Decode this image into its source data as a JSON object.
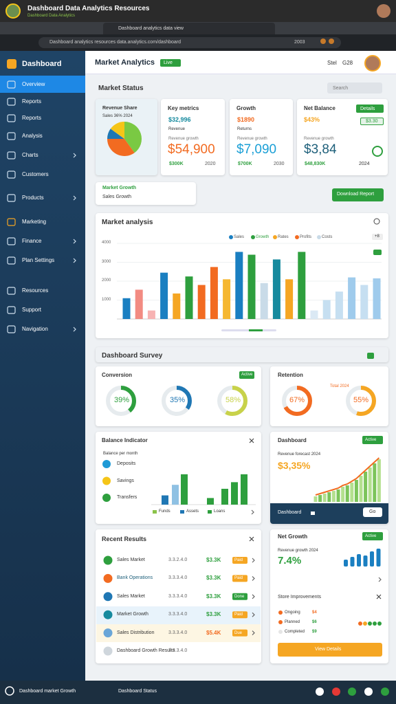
{
  "browser": {
    "title": "Dashboard Data Analytics Resources",
    "subtitle": "Dashboard Data Analytics",
    "tab": "Dashboard analytics data view",
    "url": "Dashboard analytics resources data.analytics.com/dashboard",
    "zoom": "2003"
  },
  "sidebar": {
    "brand": "Dashboard",
    "items": [
      "Overview",
      "Reports",
      "Reports",
      "Analysis",
      "Charts",
      "Customers",
      "Products",
      "Marketing",
      "Finance",
      "Plan Settings",
      "Resources",
      "Support",
      "Navigation"
    ]
  },
  "header": {
    "title": "Market Analytics",
    "badge": "Live",
    "user": "Stel",
    "code": "G28"
  },
  "overview": {
    "title": "Market Status",
    "search": "Search"
  },
  "kpis": [
    {
      "title": "Revenue Share",
      "subtitle": "Sales 36% 2024",
      "pie": {
        "values": [
          40,
          35,
          10,
          15
        ],
        "colors": [
          "#7ac943",
          "#f26b21",
          "#1f77b4",
          "#f5c518"
        ]
      }
    },
    {
      "title": "Key metrics",
      "label": "$32,996",
      "note": "Revenue",
      "caption": "Revenue growth",
      "value": "$54,900",
      "foot": [
        "$300K",
        "2020"
      ]
    },
    {
      "title": "Growth",
      "label": "$1890",
      "note": "Returns",
      "caption": "Revenue growth",
      "value": "$7,090",
      "foot": [
        "$700K",
        "2030"
      ]
    },
    {
      "title": "Net Balance",
      "badge": "Details",
      "label": "$43%",
      "chip": "$3.30",
      "caption": "Revenue growth",
      "value": "$3,84",
      "foot": [
        "$48,830K",
        "2024"
      ]
    }
  ],
  "filters": {
    "title": "Market Growth",
    "label": "Sales Growth"
  },
  "download": "Download Report",
  "market": {
    "title": "Market analysis",
    "legend": [
      "Sales",
      "Growth",
      "Rates",
      "Profits",
      "Costs"
    ],
    "badge": "+8",
    "ylim": [
      0,
      4000
    ],
    "yticks": [
      1000,
      2000,
      3000,
      4000
    ],
    "bars": {
      "values": [
        1100,
        1550,
        450,
        2450,
        1350,
        2250,
        1800,
        2750,
        2100,
        3550,
        3400,
        1900,
        3150,
        2100,
        3550,
        450,
        1000,
        1450,
        2200,
        1800,
        2150
      ],
      "colors": [
        "#1a7fc1",
        "#f28b82",
        "#f7b3b3",
        "#1a7fc1",
        "#f5a623",
        "#2e9f3e",
        "#f26b21",
        "#f26b21",
        "#f5b731",
        "#1a7fc1",
        "#2e9f3e",
        "#c9dbe8",
        "#168a9e",
        "#f5a623",
        "#2e9f3e",
        "#dbe9f4",
        "#c6dff1",
        "#c6dff1",
        "#9fcbec",
        "#c6dff1",
        "#9fcbec"
      ]
    }
  },
  "survey": {
    "title": "Dashboard Survey"
  },
  "conversion": {
    "title": "Conversion",
    "badge": "Active",
    "rings": [
      {
        "value": 39,
        "label": "39%",
        "color": "#2e9f3e"
      },
      {
        "value": 35,
        "label": "35%",
        "color": "#1f77b4"
      },
      {
        "value": 58,
        "label": "58%",
        "color": "#c8d24a"
      }
    ]
  },
  "retention": {
    "title": "Retention",
    "note": "Total 2024",
    "rings": [
      {
        "value": 67,
        "label": "67%",
        "color": "#f26b21"
      },
      {
        "value": 55,
        "label": "55%",
        "color": "#f5a623"
      }
    ]
  },
  "balance": {
    "title": "Balance Indicator",
    "note": "Balance per month",
    "items": [
      "Deposits",
      "Savings",
      "Transfers"
    ],
    "ylim": [
      0,
      50
    ],
    "bars": {
      "values": [
        14,
        30,
        46,
        10,
        24,
        34,
        46
      ],
      "colors": [
        "#1f77b4",
        "#8fc1e3",
        "#2e9f3e",
        "#2e9f3e",
        "#2e9f3e",
        "#2e9f3e",
        "#2e9f3e"
      ]
    },
    "legend": [
      "Funds",
      "Assets",
      "Loans"
    ]
  },
  "growth": {
    "title": "Dashboard",
    "badge": "Active",
    "note": "Revenue forecast 2024",
    "value": "$3,35%",
    "ylim": [
      0,
      70
    ],
    "bars": [
      8,
      10,
      12,
      14,
      16,
      18,
      22,
      24,
      28,
      32,
      38,
      44,
      50,
      56,
      62
    ],
    "footer": "Dashboard",
    "button": "Go"
  },
  "transactions": {
    "title": "Recent Results",
    "rows": [
      {
        "name": "Sales Market",
        "id": "3.3.2.4.0",
        "amount": "$3.3K",
        "badge": "Paid"
      },
      {
        "name": "Bank Operations",
        "id": "3.3.3.4.0",
        "amount": "$3.3K",
        "badge": "Paid"
      },
      {
        "name": "Sales Market",
        "id": "3.3.3.4.0",
        "amount": "$3.3K",
        "badge": "Done"
      },
      {
        "name": "Market Growth",
        "id": "3.3.3.4.0",
        "amount": "$3.3K",
        "badge": "Paid"
      },
      {
        "name": "Sales Distribution",
        "id": "3.3.3.4.0",
        "amount": "$5.4K",
        "badge": "Due"
      },
      {
        "name": "Dashboard Growth Results",
        "id": "3.3.3.4.0"
      }
    ]
  },
  "signal": {
    "title": "Net Growth",
    "badge": "Active",
    "note": "Revenue growth 2024",
    "value": "7.4%",
    "ylim": [
      0,
      30
    ],
    "bars": [
      10,
      14,
      18,
      16,
      22,
      26
    ],
    "sub": "Store Improvements",
    "legend": [
      {
        "name": "Ongoing",
        "value": "$4"
      },
      {
        "name": "Planned",
        "value": "$6"
      },
      {
        "name": "Completed",
        "value": "$9"
      }
    ],
    "button": "View Details"
  },
  "statusbar": {
    "left": "Dashboard market Growth",
    "center": "Dashboard Status"
  }
}
